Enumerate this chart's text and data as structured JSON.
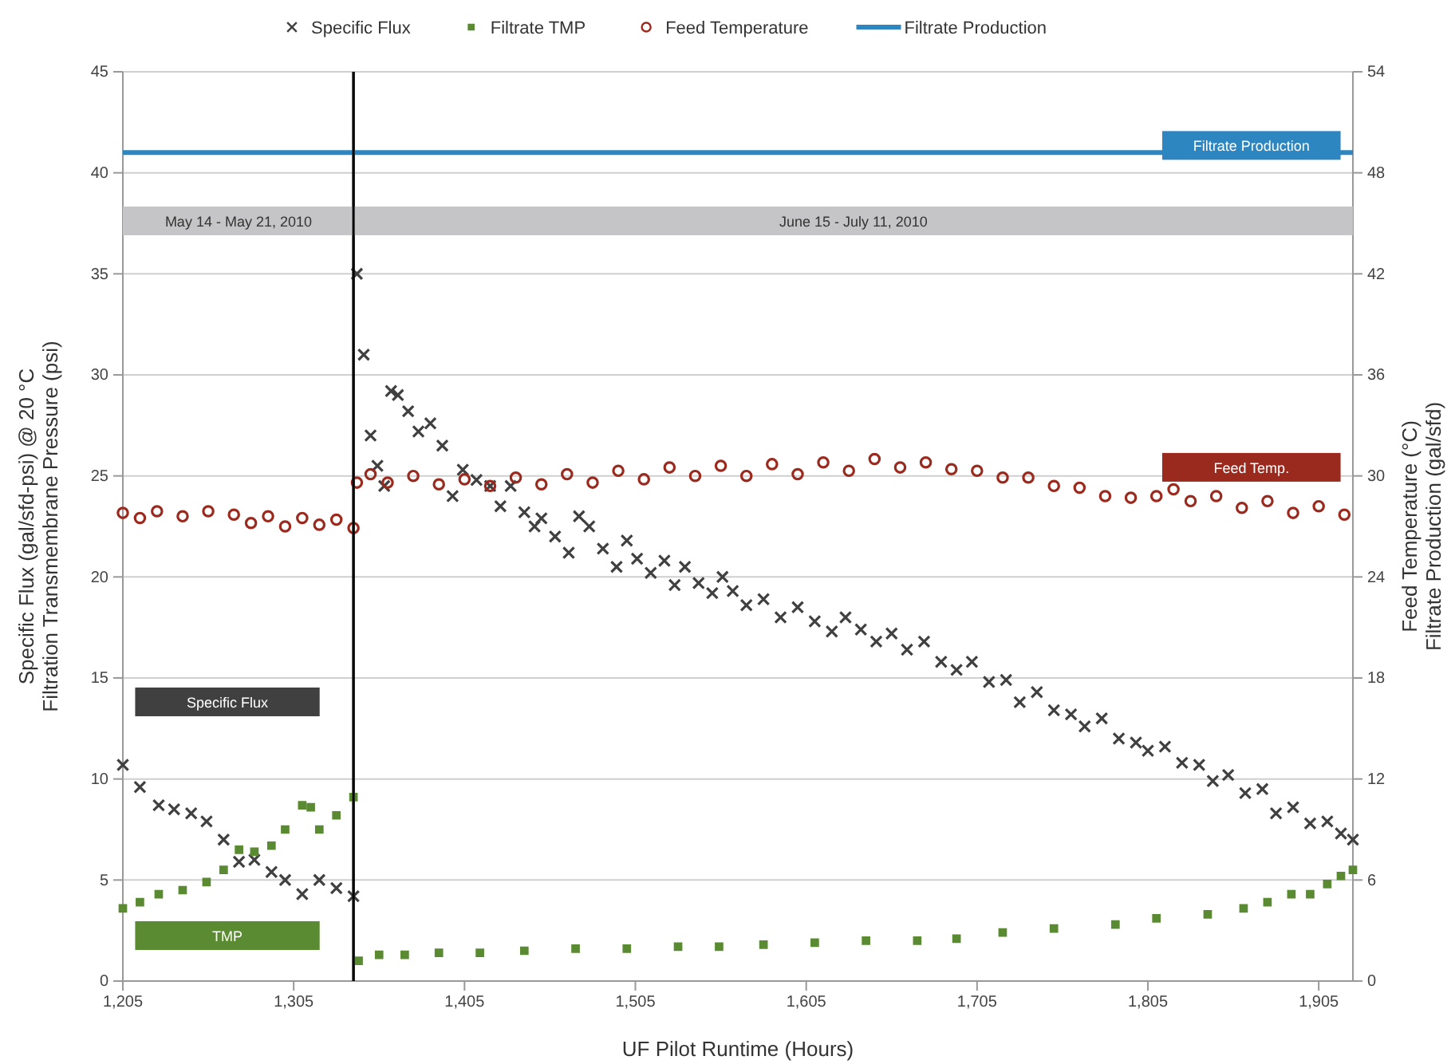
{
  "chart_data": {
    "type": "scatter",
    "xlabel": "UF Pilot Runtime (Hours)",
    "ylabel": "Specific Flux (gal/sfd-psi) @ 20 °C\nFiltration Transmembrane Pressure (psi)",
    "y2label": "Feed Temperature (°C)\nFiltrate Production (gal/sfd)",
    "xlim": [
      1205,
      1925
    ],
    "xticks": [
      {
        "value": 1205,
        "label": "1,205"
      },
      {
        "value": 1305,
        "label": "1,305"
      },
      {
        "value": 1405,
        "label": "1,405"
      },
      {
        "value": 1505,
        "label": "1,505"
      },
      {
        "value": 1605,
        "label": "1,605"
      },
      {
        "value": 1705,
        "label": "1,705"
      },
      {
        "value": 1805,
        "label": "1,805"
      },
      {
        "value": 1905,
        "label": "1,905"
      }
    ],
    "ylim": [
      0,
      45
    ],
    "yticks": [
      0,
      5,
      10,
      15,
      20,
      25,
      30,
      35,
      40,
      45
    ],
    "y2lim": [
      0,
      54
    ],
    "y2ticks": [
      0,
      6,
      12,
      18,
      24,
      30,
      36,
      42,
      48,
      54
    ],
    "grid": "y",
    "legend": "top",
    "ref_lines": [
      {
        "axis": "x",
        "value": 1340,
        "color": "#000000"
      }
    ],
    "annotations": [
      "Filtrate Production",
      "May 14 - May 21, 2010",
      "June 15 - July 11, 2010",
      "Feed Temp.",
      "Specific Flux",
      "TMP"
    ],
    "series": [
      {
        "name": "Specific Flux",
        "marker": "cross",
        "color": "#404040",
        "x": [
          1205,
          1215,
          1226,
          1235,
          1245,
          1254,
          1264,
          1273,
          1282,
          1292,
          1300,
          1310,
          1320,
          1330,
          1340,
          1341,
          1342,
          1346,
          1350,
          1354,
          1358,
          1362,
          1366,
          1372,
          1378,
          1385,
          1392,
          1398,
          1404,
          1412,
          1420,
          1426,
          1432,
          1440,
          1446,
          1450,
          1458,
          1466,
          1472,
          1478,
          1486,
          1494,
          1500,
          1506,
          1514,
          1522,
          1528,
          1534,
          1542,
          1550,
          1556,
          1562,
          1570,
          1580,
          1590,
          1600,
          1610,
          1620,
          1628,
          1637,
          1646,
          1655,
          1664,
          1674,
          1684,
          1693,
          1702,
          1712,
          1722,
          1730,
          1740,
          1750,
          1760,
          1768,
          1778,
          1788,
          1798,
          1805,
          1815,
          1825,
          1835,
          1843,
          1852,
          1862,
          1872,
          1880,
          1890,
          1900,
          1910,
          1918,
          1925
        ],
        "values": [
          10.7,
          9.6,
          8.7,
          8.5,
          8.3,
          7.9,
          7.0,
          5.9,
          6.0,
          5.4,
          5.0,
          4.3,
          5.0,
          4.6,
          4.2,
          null,
          35,
          31,
          27,
          25.5,
          24.5,
          29.2,
          29,
          28.2,
          27.2,
          27.6,
          26.5,
          24,
          25.3,
          24.8,
          24.5,
          23.5,
          24.5,
          23.2,
          22.5,
          22.9,
          22.0,
          21.2,
          23,
          22.5,
          21.4,
          20.5,
          21.8,
          20.9,
          20.2,
          20.8,
          19.6,
          20.5,
          19.7,
          19.2,
          20,
          19.3,
          18.6,
          18.9,
          18,
          18.5,
          17.8,
          17.3,
          18,
          17.4,
          16.8,
          17.2,
          16.4,
          16.8,
          15.8,
          15.4,
          15.8,
          14.8,
          14.9,
          13.8,
          14.3,
          13.4,
          13.2,
          12.6,
          13,
          12.0,
          11.8,
          11.4,
          11.6,
          10.8,
          10.7,
          9.9,
          10.2,
          9.3,
          9.5,
          8.3,
          8.6,
          7.8,
          7.9,
          7.3,
          7.0
        ]
      },
      {
        "name": "Filtrate TMP",
        "marker": "square",
        "color": "#5a8a32",
        "x": [
          1205,
          1215,
          1226,
          1240,
          1254,
          1264,
          1273,
          1282,
          1292,
          1300,
          1310,
          1315,
          1320,
          1330,
          1340,
          1341,
          1343,
          1355,
          1370,
          1390,
          1414,
          1440,
          1470,
          1500,
          1530,
          1554,
          1580,
          1610,
          1640,
          1670,
          1693,
          1720,
          1750,
          1786,
          1810,
          1840,
          1861,
          1875,
          1889,
          1900,
          1910,
          1918,
          1925
        ],
        "values": [
          3.6,
          3.9,
          4.3,
          4.5,
          4.9,
          5.5,
          6.5,
          6.4,
          6.7,
          7.5,
          8.7,
          8.6,
          7.5,
          8.2,
          9.1,
          null,
          1.0,
          1.3,
          1.3,
          1.4,
          1.4,
          1.5,
          1.6,
          1.6,
          1.7,
          1.7,
          1.8,
          1.9,
          2.0,
          2.0,
          2.1,
          2.4,
          2.6,
          2.8,
          3.1,
          3.3,
          3.6,
          3.9,
          4.3,
          4.3,
          4.8,
          5.2,
          5.5
        ]
      },
      {
        "name": "Feed Temperature",
        "marker": "circle",
        "axis": "y2",
        "color": "#9b2a1e",
        "x": [
          1205,
          1215,
          1225,
          1240,
          1255,
          1270,
          1280,
          1290,
          1300,
          1310,
          1320,
          1330,
          1340,
          1341,
          1342,
          1350,
          1360,
          1375,
          1390,
          1405,
          1420,
          1435,
          1450,
          1465,
          1480,
          1495,
          1510,
          1525,
          1540,
          1555,
          1570,
          1585,
          1600,
          1615,
          1630,
          1645,
          1660,
          1675,
          1690,
          1705,
          1720,
          1735,
          1750,
          1765,
          1780,
          1795,
          1810,
          1820,
          1830,
          1845,
          1860,
          1875,
          1890,
          1905,
          1920
        ],
        "values": [
          27.8,
          27.5,
          27.9,
          27.6,
          27.9,
          27.7,
          27.2,
          27.6,
          27.0,
          27.5,
          27.1,
          27.4,
          26.9,
          null,
          29.6,
          30.1,
          29.6,
          30.0,
          29.5,
          29.8,
          29.4,
          29.9,
          29.5,
          30.1,
          29.6,
          30.3,
          29.8,
          30.5,
          30.0,
          30.6,
          30.0,
          30.7,
          30.1,
          30.8,
          30.3,
          31.0,
          30.5,
          30.8,
          30.4,
          30.3,
          29.9,
          29.9,
          29.4,
          29.3,
          28.8,
          28.7,
          28.8,
          29.2,
          28.5,
          28.8,
          28.1,
          28.5,
          27.8,
          28.2,
          27.7
        ]
      },
      {
        "name": "Filtrate Production",
        "type": "line",
        "axis": "y2",
        "color": "#2e86c1",
        "x": [
          1205,
          1925
        ],
        "values": [
          49.2,
          49.2
        ]
      }
    ]
  }
}
